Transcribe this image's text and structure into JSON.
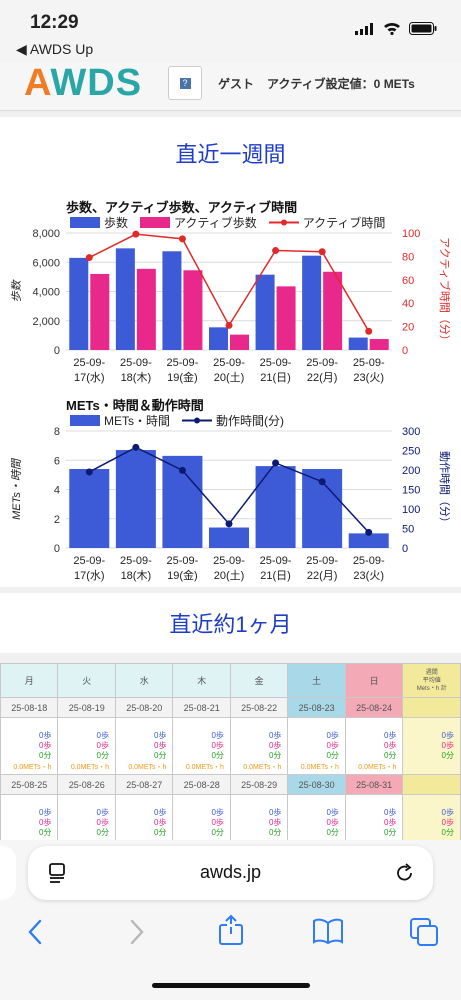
{
  "status": {
    "time": "12:29",
    "back_app": "◀ AWDS Up"
  },
  "header": {
    "logo": "AWDS",
    "help_icon_label": "?",
    "guest": "ゲスト",
    "active_setting": "アクティブ設定値：0 METs"
  },
  "week": {
    "title": "直近一週間",
    "chart1": {
      "title": "歩数、アクティブ歩数、アクティブ時間",
      "legend": [
        "歩数",
        "アクティブ歩数",
        "アクティブ時間"
      ],
      "ylabel_left": "歩数",
      "ylabel_right": "アクティブ時間（分）",
      "left_ticks": [
        "0",
        "2,000",
        "4,000",
        "6,000",
        "8,000"
      ],
      "right_ticks": [
        "0",
        "20",
        "40",
        "60",
        "80",
        "100"
      ]
    },
    "chart2": {
      "title": "METs・時間＆動作時間",
      "legend": [
        "METs・時間",
        "動作時間(分)"
      ],
      "ylabel_left": "METs・時間",
      "ylabel_right": "動作時間（分）",
      "left_ticks": [
        "0",
        "2",
        "4",
        "6",
        "8"
      ],
      "right_ticks": [
        "0",
        "50",
        "100",
        "150",
        "200",
        "250",
        "300"
      ]
    },
    "dates_line1": [
      "25-09-",
      "25-09-",
      "25-09-",
      "25-09-",
      "25-09-",
      "25-09-",
      "25-09-"
    ],
    "dates_line2": [
      "17(水)",
      "18(木)",
      "19(金)",
      "20(土)",
      "21(日)",
      "22(月)",
      "23(火)"
    ]
  },
  "month": {
    "title": "直近約1ヶ月",
    "day_headers": [
      "月",
      "火",
      "水",
      "木",
      "金",
      "土",
      "日",
      "週間\n平均値\nMets・h 計"
    ],
    "week1_dates": [
      "25-08-18",
      "25-08-19",
      "25-08-20",
      "25-08-21",
      "25-08-22",
      "25-08-23",
      "25-08-24",
      ""
    ],
    "week2_dates": [
      "25-08-25",
      "25-08-26",
      "25-08-27",
      "25-08-28",
      "25-08-29",
      "25-08-30",
      "25-08-31",
      ""
    ],
    "stat_steps": "0歩",
    "stat_active_steps": "0歩",
    "stat_minutes": "0分",
    "stat_mets": "0.0METs・h"
  },
  "browser": {
    "url": "awds.jp"
  },
  "chart_data": [
    {
      "type": "bar",
      "title": "歩数、アクティブ歩数、アクティブ時間",
      "categories": [
        "25-09-17(水)",
        "25-09-18(木)",
        "25-09-19(金)",
        "25-09-20(土)",
        "25-09-21(日)",
        "25-09-22(月)",
        "25-09-23(火)"
      ],
      "series": [
        {
          "name": "歩数",
          "axis": "left",
          "kind": "bar",
          "color": "#3d5bd6",
          "values": [
            6300,
            6950,
            6750,
            1550,
            5150,
            6450,
            850
          ]
        },
        {
          "name": "アクティブ歩数",
          "axis": "left",
          "kind": "bar",
          "color": "#e8288a",
          "values": [
            5200,
            5550,
            5450,
            1050,
            4350,
            5350,
            750
          ]
        },
        {
          "name": "アクティブ時間",
          "axis": "right",
          "kind": "line",
          "color": "#e02a2a",
          "values": [
            79,
            99,
            95,
            21,
            85,
            84,
            16
          ]
        }
      ],
      "ylabel": "歩数",
      "y2label": "アクティブ時間（分）",
      "ylim": [
        0,
        8000
      ],
      "y2lim": [
        0,
        100
      ],
      "grid": true,
      "legend": "top"
    },
    {
      "type": "bar",
      "title": "METs・時間＆動作時間",
      "categories": [
        "25-09-17(水)",
        "25-09-18(木)",
        "25-09-19(金)",
        "25-09-20(土)",
        "25-09-21(日)",
        "25-09-22(月)",
        "25-09-23(火)"
      ],
      "series": [
        {
          "name": "METs・時間",
          "axis": "left",
          "kind": "bar",
          "color": "#3d5bd6",
          "values": [
            5.4,
            6.7,
            6.3,
            1.4,
            5.6,
            5.4,
            1.0
          ]
        },
        {
          "name": "動作時間(分)",
          "axis": "right",
          "kind": "line",
          "color": "#0d1a73",
          "values": [
            195,
            258,
            199,
            62,
            218,
            170,
            40
          ]
        }
      ],
      "ylabel": "METs・時間",
      "y2label": "動作時間（分）",
      "ylim": [
        0,
        8
      ],
      "y2lim": [
        0,
        300
      ],
      "grid": true,
      "legend": "top"
    }
  ]
}
